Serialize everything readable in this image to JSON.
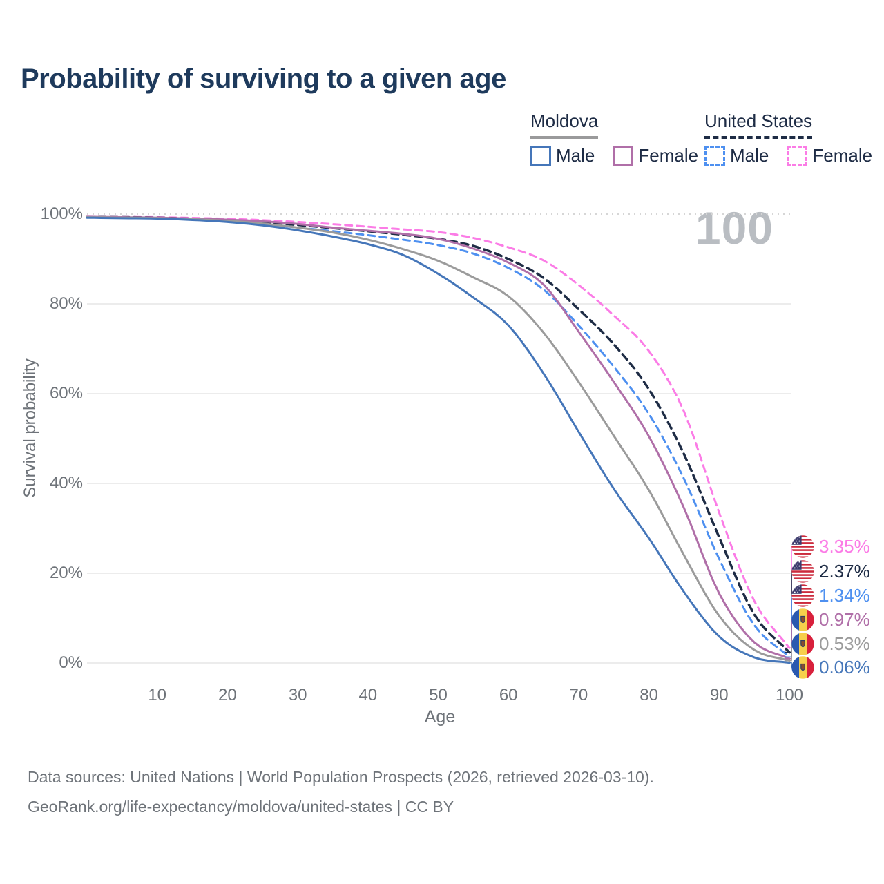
{
  "title": "Probability of surviving to a given age",
  "watermark": "100",
  "legend": {
    "groups": [
      {
        "label": "Moldova",
        "line_style": "solid",
        "underline_color": "#9a9a9b",
        "items": [
          {
            "label": "Male",
            "color": "#4576b9",
            "swatch": "solid"
          },
          {
            "label": "Female",
            "color": "#b06fa8",
            "swatch": "solid"
          }
        ]
      },
      {
        "label": "United States",
        "line_style": "dashed",
        "underline_color": "#1e2c45",
        "items": [
          {
            "label": "Male",
            "color": "#4e90f0",
            "swatch": "dashed"
          },
          {
            "label": "Female",
            "color": "#fb7ce6",
            "swatch": "dashed"
          }
        ]
      }
    ]
  },
  "chart_data": {
    "type": "line",
    "title": "Probability of surviving to a given age",
    "xlabel": "Age",
    "ylabel": "Survival probability",
    "xlim": [
      0,
      100
    ],
    "ylim": [
      0,
      100
    ],
    "grid": "horizontal",
    "x_ticks": [
      10,
      20,
      30,
      40,
      50,
      60,
      70,
      80,
      90,
      100
    ],
    "y_ticks": [
      0,
      20,
      40,
      60,
      80,
      100
    ],
    "y_tick_labels": [
      "0%",
      "20%",
      "40%",
      "60%",
      "80%",
      "100%"
    ],
    "ages": [
      0,
      5,
      10,
      15,
      20,
      25,
      30,
      35,
      40,
      45,
      50,
      55,
      60,
      65,
      70,
      75,
      80,
      85,
      90,
      95,
      100
    ],
    "series": [
      {
        "id": "us-female",
        "country": "United States",
        "sex": "Female",
        "style": "dashed",
        "color": "#fb7ce6",
        "flag": "us",
        "end_label": "3.35%",
        "values": [
          99.4,
          99.35,
          99.3,
          99.15,
          98.95,
          98.65,
          98.25,
          97.75,
          97.2,
          96.6,
          96.0,
          94.7,
          92.6,
          89.7,
          84.2,
          77.4,
          69.5,
          56.0,
          33.5,
          13.8,
          3.35
        ]
      },
      {
        "id": "us-both",
        "country": "United States",
        "sex": "Both",
        "style": "dashed",
        "color": "#1e2c45",
        "flag": "us",
        "end_label": "2.37%",
        "values": [
          99.35,
          99.3,
          99.2,
          98.95,
          98.65,
          98.2,
          97.6,
          96.9,
          96.2,
          95.4,
          94.5,
          92.9,
          90.0,
          85.8,
          78.8,
          71.0,
          61.0,
          46.5,
          28.0,
          10.8,
          2.37
        ]
      },
      {
        "id": "us-male",
        "country": "United States",
        "sex": "Male",
        "style": "dashed",
        "color": "#4e90f0",
        "flag": "us",
        "end_label": "1.34%",
        "values": [
          99.3,
          99.25,
          99.15,
          98.85,
          98.4,
          97.8,
          97.0,
          96.2,
          95.3,
          94.3,
          93.1,
          91.2,
          88.0,
          83.2,
          75.2,
          66.0,
          55.5,
          41.0,
          23.2,
          8.4,
          1.34
        ]
      },
      {
        "id": "moldova-female",
        "country": "Moldova",
        "sex": "Female",
        "style": "solid",
        "color": "#b06fa8",
        "flag": "md",
        "end_label": "0.97%",
        "values": [
          99.4,
          99.3,
          99.2,
          99.0,
          98.75,
          98.4,
          97.8,
          97.0,
          96.3,
          95.6,
          94.5,
          92.3,
          89.2,
          84.3,
          73.8,
          62.6,
          50.5,
          34.5,
          15.5,
          4.6,
          0.97
        ]
      },
      {
        "id": "moldova-both",
        "country": "Moldova",
        "sex": "Both",
        "style": "solid",
        "color": "#9b9b9b",
        "flag": "md",
        "end_label": "0.53%",
        "values": [
          99.3,
          99.2,
          99.1,
          98.85,
          98.5,
          97.9,
          97.0,
          95.9,
          94.3,
          92.2,
          89.6,
          85.9,
          81.7,
          73.6,
          62.6,
          50.6,
          38.5,
          24.0,
          10.5,
          2.9,
          0.53
        ]
      },
      {
        "id": "moldova-male",
        "country": "Moldova",
        "sex": "Male",
        "style": "solid",
        "color": "#4576b9",
        "flag": "md",
        "end_label": "0.06%",
        "values": [
          99.2,
          99.1,
          99.0,
          98.7,
          98.25,
          97.5,
          96.4,
          95.0,
          93.3,
          90.9,
          86.7,
          81.4,
          75.2,
          64.5,
          51.5,
          38.8,
          27.8,
          15.8,
          5.9,
          1.25,
          0.06
        ]
      }
    ]
  },
  "footer": {
    "line1": "Data sources: United Nations | World Population Prospects (2026, retrieved 2026-03-10).",
    "line2": "GeoRank.org/life-expectancy/moldova/united-states | CC BY"
  }
}
